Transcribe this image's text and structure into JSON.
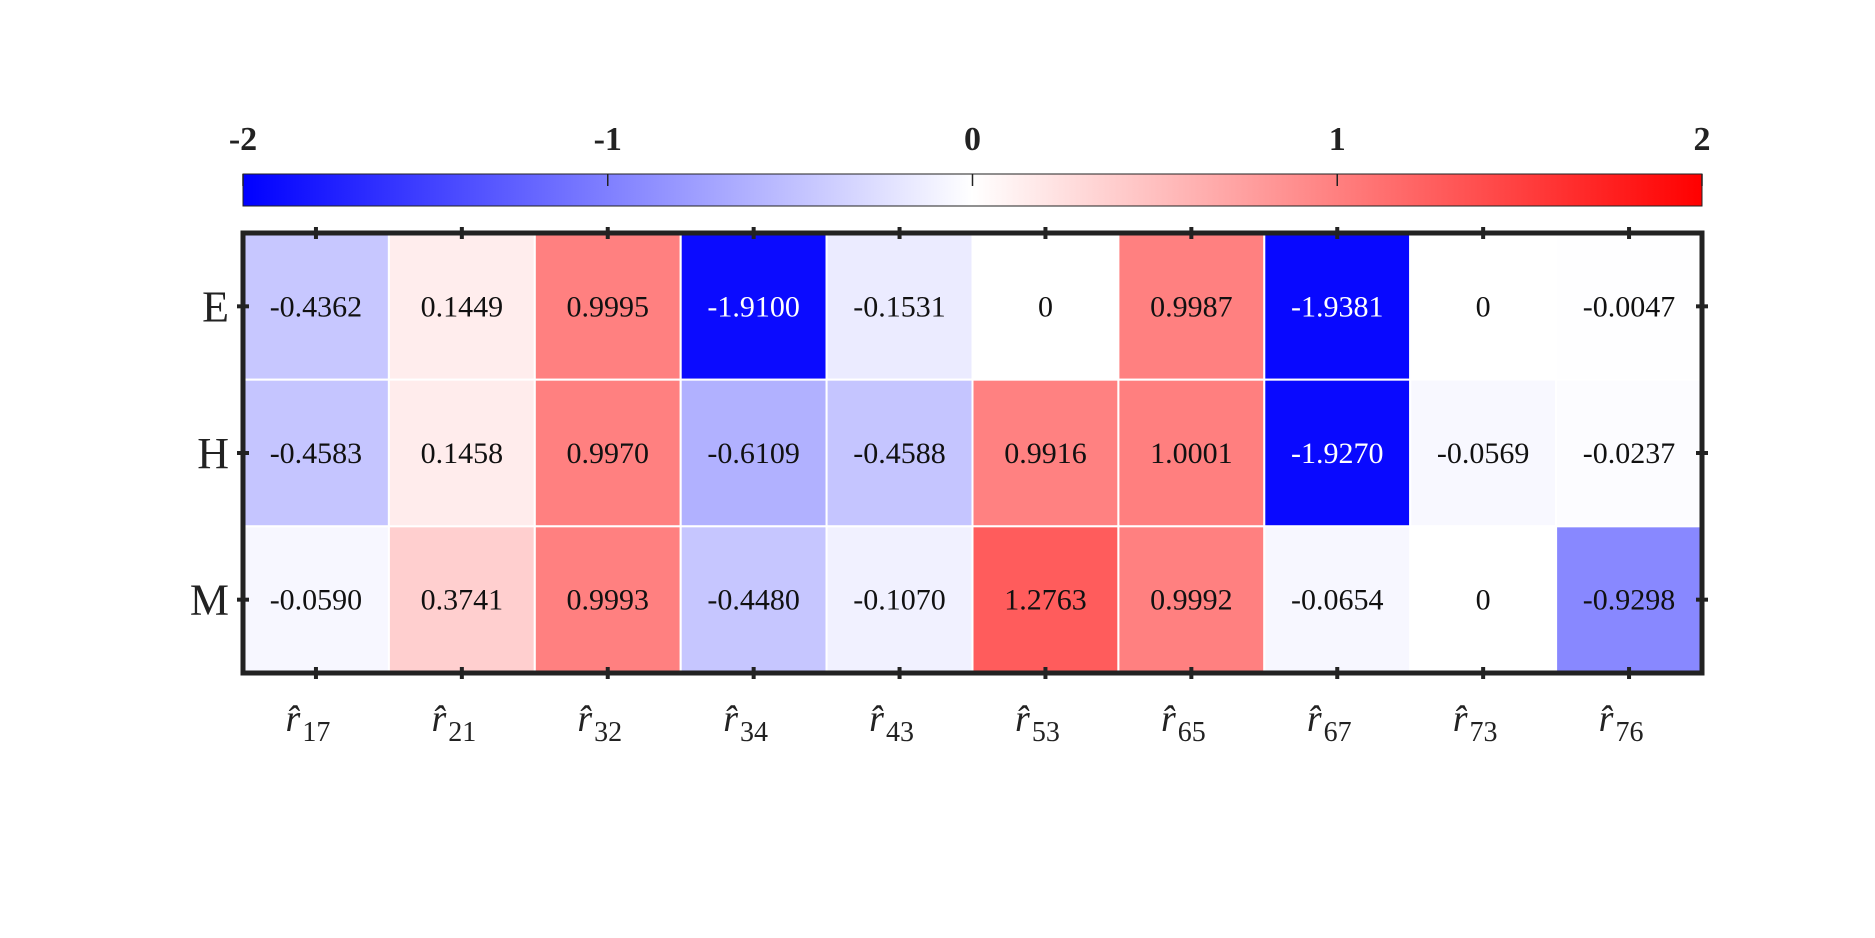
{
  "chart_data": {
    "type": "heatmap",
    "title": "",
    "xlabel": "",
    "ylabel": "",
    "rows": [
      "E",
      "H",
      "M"
    ],
    "columns": [
      {
        "symbol": "r̂",
        "sub": "17"
      },
      {
        "symbol": "r̂",
        "sub": "21"
      },
      {
        "symbol": "r̂",
        "sub": "32"
      },
      {
        "symbol": "r̂",
        "sub": "34"
      },
      {
        "symbol": "r̂",
        "sub": "43"
      },
      {
        "symbol": "r̂",
        "sub": "53"
      },
      {
        "symbol": "r̂",
        "sub": "65"
      },
      {
        "symbol": "r̂",
        "sub": "67"
      },
      {
        "symbol": "r̂",
        "sub": "73"
      },
      {
        "symbol": "r̂",
        "sub": "76"
      }
    ],
    "values": [
      [
        "-0.4362",
        "0.1449",
        "0.9995",
        "-1.9100",
        "-0.1531",
        "0",
        "0.9987",
        "-1.9381",
        "0",
        "-0.0047"
      ],
      [
        "-0.4583",
        "0.1458",
        "0.9970",
        "-0.6109",
        "-0.4588",
        "0.9916",
        "1.0001",
        "-1.9270",
        "-0.0569",
        "-0.0237"
      ],
      [
        "-0.0590",
        "0.3741",
        "0.9993",
        "-0.4480",
        "-0.1070",
        "1.2763",
        "0.9992",
        "-0.0654",
        "0",
        "-0.9298"
      ]
    ],
    "colorbar": {
      "range": [
        -2,
        2
      ],
      "ticks": [
        "-2",
        "-1",
        "0",
        "1",
        "2"
      ],
      "placement": "top",
      "colormap": [
        "#0000ff",
        "#ffffff",
        "#ff0000"
      ]
    },
    "grid": false
  }
}
